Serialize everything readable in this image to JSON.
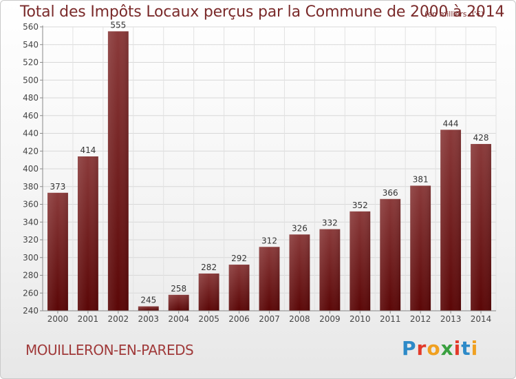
{
  "title": "Total des Impôts Locaux perçus par la Commune de 2000 à 2014",
  "unit": "(en milliers d'€)",
  "commune": "MOUILLERON-EN-PAREDS",
  "logo": {
    "text": "Proxiti",
    "letters": [
      "P",
      "r",
      "o",
      "x",
      "i",
      "t",
      "i"
    ],
    "colors": [
      "#2d8ac8",
      "#e23a2a",
      "#f0a020",
      "#3aa040",
      "#e23a2a",
      "#2d8ac8",
      "#f0a020"
    ]
  },
  "colors": {
    "bar_top": "#8a3a3a",
    "bar_bottom": "#5a0606",
    "title": "#7a2a2a"
  },
  "chart_data": {
    "type": "bar",
    "categories": [
      "2000",
      "2001",
      "2002",
      "2003",
      "2004",
      "2005",
      "2006",
      "2007",
      "2008",
      "2009",
      "2010",
      "2011",
      "2012",
      "2013",
      "2014"
    ],
    "values": [
      373,
      414,
      555,
      245,
      258,
      282,
      292,
      312,
      326,
      332,
      352,
      366,
      381,
      444,
      428
    ],
    "title": "Total des Impôts Locaux perçus par la Commune de 2000 à 2014",
    "xlabel": "",
    "ylabel": "",
    "ylim": [
      240,
      560
    ],
    "yticks": [
      240,
      260,
      280,
      300,
      320,
      340,
      360,
      380,
      400,
      420,
      440,
      460,
      480,
      500,
      520,
      540,
      560
    ],
    "grid": true
  }
}
